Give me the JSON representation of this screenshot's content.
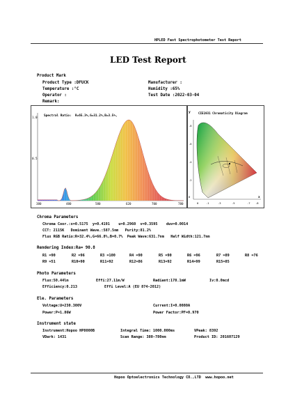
{
  "header": {
    "top_right": "HPLED Fast Spectrophotometer Test Report",
    "title": "LED Test Report"
  },
  "product_mark": {
    "heading": "Product Mark",
    "product_type": "Product Type :DFUCK",
    "temperature": "Temperature :°C",
    "operator": "Operator :",
    "remark": "Remark:",
    "manufacturer": "Manufacturer :",
    "humidity": "Humidity :65%",
    "test_date": "Test Date :2022-03-04"
  },
  "spectrum": {
    "ratio_label": "Spectral Ratio:  R=65.3%,G=31.2%,B=3.5%,",
    "y_ticks": [
      "1.0",
      "0.5"
    ],
    "x_ticks": [
      "380",
      "480",
      "580",
      "620",
      "700",
      "780"
    ]
  },
  "cie": {
    "title": "CIE1931 Chromaticity Diagram",
    "y_label": "y",
    "x_label": "x",
    "y_ticks": [
      ".8",
      ".6",
      ".4",
      ".2",
      "0"
    ],
    "x_ticks": [
      "0",
      ".1",
      ".3",
      ".5",
      ".7",
      ".8"
    ]
  },
  "chroma": {
    "heading": "Chroma Parameters",
    "line1": "Chroma Coor.:x=0.5175  y=0.4191    u=0.2960  v=0.3595    duv=0.0014",
    "line2": "CCT: 2115K   Dominant Wave.:587.5nm   Purity:81.2%",
    "line3": "Flux RGB Ratio:R=32.4%,G=66.8%,B=0.7%  Peak Wave:631.7nm   Half Width:121.7nm"
  },
  "rendering": {
    "heading": "Rendering Index:Ra= 90.8",
    "row1": [
      "R1 =90",
      "R2 =96",
      "R3 =100",
      "R4 =90",
      "R5 =90",
      "R6 =96",
      "R7 =89",
      "R8 =76"
    ],
    "row2": [
      "R9 =51",
      "R10=90",
      "R11=92",
      "R12=86",
      "R13=92",
      "R14=99",
      "R15=85"
    ]
  },
  "photo": {
    "heading": "Photo Parameters",
    "flux": "Flux:50.44lm",
    "effi": "Effi:27.11m/W",
    "radiant": "Radiant:178.1mW",
    "iv": "Iv:0.0mcd",
    "efficiency": "Efficiency:0.213",
    "effi_level": "Effi Level:A (EU 874-2012)"
  },
  "electrical": {
    "heading": "Ele. Parameters",
    "voltage": "Voltage:U=230.300V",
    "current": "Current:I=0.0080A",
    "power": "Power:P=1.86W",
    "power_factor": "Power Factor:PF=0.970"
  },
  "instrument": {
    "heading": "Instrument state",
    "instrument": "Instrument:Hopoo HP8000B",
    "integral_time": "Integral Time: 1000.000ms",
    "vpeak": "VPeak: 8392",
    "vdark": "VDark: 1431",
    "scan_range": "Scan Range: 380-780nm",
    "product_id": "Product ID: 201607129"
  },
  "footer": {
    "text": "Hopoo Optoelectronics Technology CO.,LTD  www.hopoo.net"
  }
}
